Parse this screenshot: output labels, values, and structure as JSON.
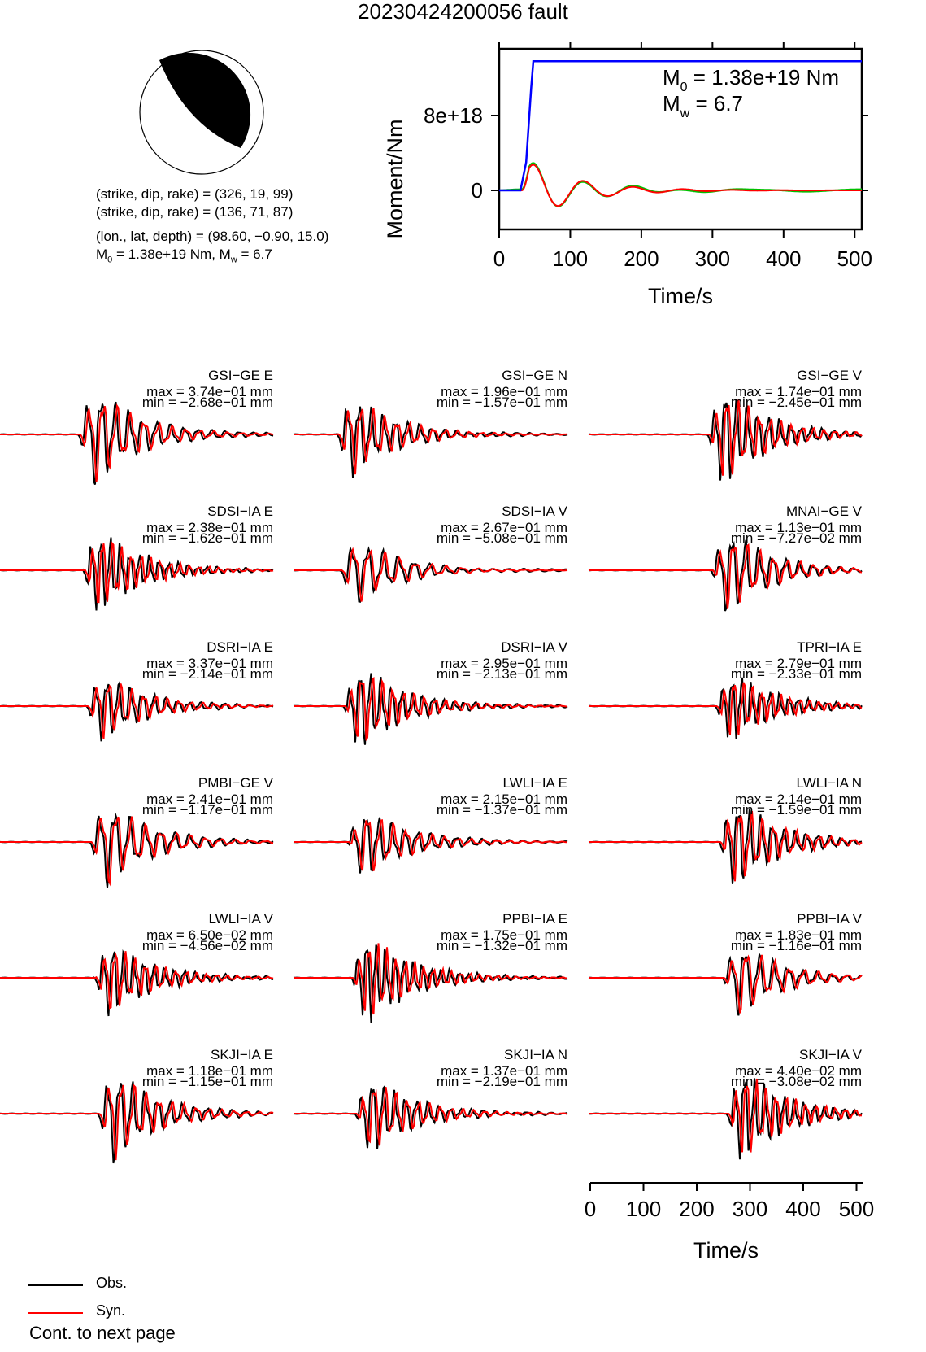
{
  "title": "20230424200056 fault",
  "mechanism": {
    "line1": "(strike, dip, rake) = (326, 19, 99)",
    "line2": "(strike, dip, rake) = (136, 71, 87)",
    "line3": "(lon., lat, depth) = (98.60, −0.90, 15.0)",
    "m0_prefix": "M",
    "m0_sub": "0",
    "m0_rest": " = 1.38e+19 Nm, M",
    "mw_sub": "w",
    "mw_rest": " = 6.7"
  },
  "moment_plot": {
    "ylabel": "Moment/Nm",
    "xlabel": "Time/s",
    "m0_label_prefix": "M",
    "m0_label_sub": "0",
    "m0_label_rest": " = 1.38e+19 Nm",
    "mw_label_prefix": "M",
    "mw_label_sub": "w",
    "mw_label_rest": " = 6.7",
    "yticks": [
      "0",
      "8e+18"
    ],
    "xticks": [
      "0",
      "100",
      "200",
      "300",
      "400",
      "500"
    ]
  },
  "colors": {
    "obs": "#000000",
    "syn": "#ff0000",
    "cumulative": "#0000ff",
    "moment_rate_green": "#00c000",
    "moment_rate_red": "#ff0000",
    "beachball_fill": "#000000"
  },
  "legend": {
    "obs": "Obs.",
    "syn": "Syn."
  },
  "time_axis": {
    "xlabel": "Time/s",
    "xticks": [
      "0",
      "100",
      "200",
      "300",
      "400",
      "500"
    ]
  },
  "footer": "Cont. to next page",
  "chart_data": [
    {
      "type": "line",
      "title": "",
      "xlabel": "Time/s",
      "ylabel": "Moment/Nm",
      "xlim": [
        0,
        510
      ],
      "yticks": [
        0,
        8e+18
      ],
      "series": [
        {
          "name": "",
          "color": "#0000ff",
          "x": [
            0,
            30,
            38,
            45,
            48,
            510
          ],
          "y": [
            0,
            0,
            3e+18,
            1.1e+19,
            1.38e+19,
            1.38e+19
          ]
        }
      ]
    },
    {
      "type": "line",
      "series": [
        {
          "name": "Obs.",
          "color": "#000000"
        },
        {
          "name": "Syn.",
          "color": "#ff0000"
        }
      ],
      "panels": [
        {
          "station": "GSI−GE E",
          "max": "max = 3.74e−01 mm",
          "min": "min = −2.68e−01 mm"
        },
        {
          "station": "GSI−GE N",
          "max": "max = 1.96e−01 mm",
          "min": "min = −1.57e−01 mm"
        },
        {
          "station": "GSI−GE V",
          "max": "max = 1.74e−01 mm",
          "min": "min = −2.45e−01 mm"
        },
        {
          "station": "SDSI−IA E",
          "max": "max = 2.38e−01 mm",
          "min": "min = −1.62e−01 mm"
        },
        {
          "station": "SDSI−IA V",
          "max": "max = 2.67e−01 mm",
          "min": "min = −5.08e−01 mm"
        },
        {
          "station": "MNAI−GE V",
          "max": "max = 1.13e−01 mm",
          "min": "min = −7.27e−02 mm"
        },
        {
          "station": "DSRI−IA E",
          "max": "max = 3.37e−01 mm",
          "min": "min = −2.14e−01 mm"
        },
        {
          "station": "DSRI−IA V",
          "max": "max = 2.95e−01 mm",
          "min": "min = −2.13e−01 mm"
        },
        {
          "station": "TPRI−IA E",
          "max": "max = 2.79e−01 mm",
          "min": "min = −2.33e−01 mm"
        },
        {
          "station": "PMBI−GE V",
          "max": "max = 2.41e−01 mm",
          "min": "min = −1.17e−01 mm"
        },
        {
          "station": "LWLI−IA E",
          "max": "max = 2.15e−01 mm",
          "min": "min = −1.37e−01 mm"
        },
        {
          "station": "LWLI−IA N",
          "max": "max = 2.14e−01 mm",
          "min": "min = −1.59e−01 mm"
        },
        {
          "station": "LWLI−IA V",
          "max": "max = 6.50e−02 mm",
          "min": "min = −4.56e−02 mm"
        },
        {
          "station": "PPBI−IA E",
          "max": "max = 1.75e−01 mm",
          "min": "min = −1.32e−01 mm"
        },
        {
          "station": "PPBI−IA V",
          "max": "max = 1.83e−01 mm",
          "min": "min = −1.16e−01 mm"
        },
        {
          "station": "SKJI−IA E",
          "max": "max = 1.18e−01 mm",
          "min": "min = −1.15e−01 mm"
        },
        {
          "station": "SKJI−IA N",
          "max": "max = 1.37e−01 mm",
          "min": "min = −2.19e−01 mm"
        },
        {
          "station": "SKJI−IA V",
          "max": "max = 4.40e−02 mm",
          "min": "min = −3.08e−02 mm"
        }
      ]
    }
  ]
}
